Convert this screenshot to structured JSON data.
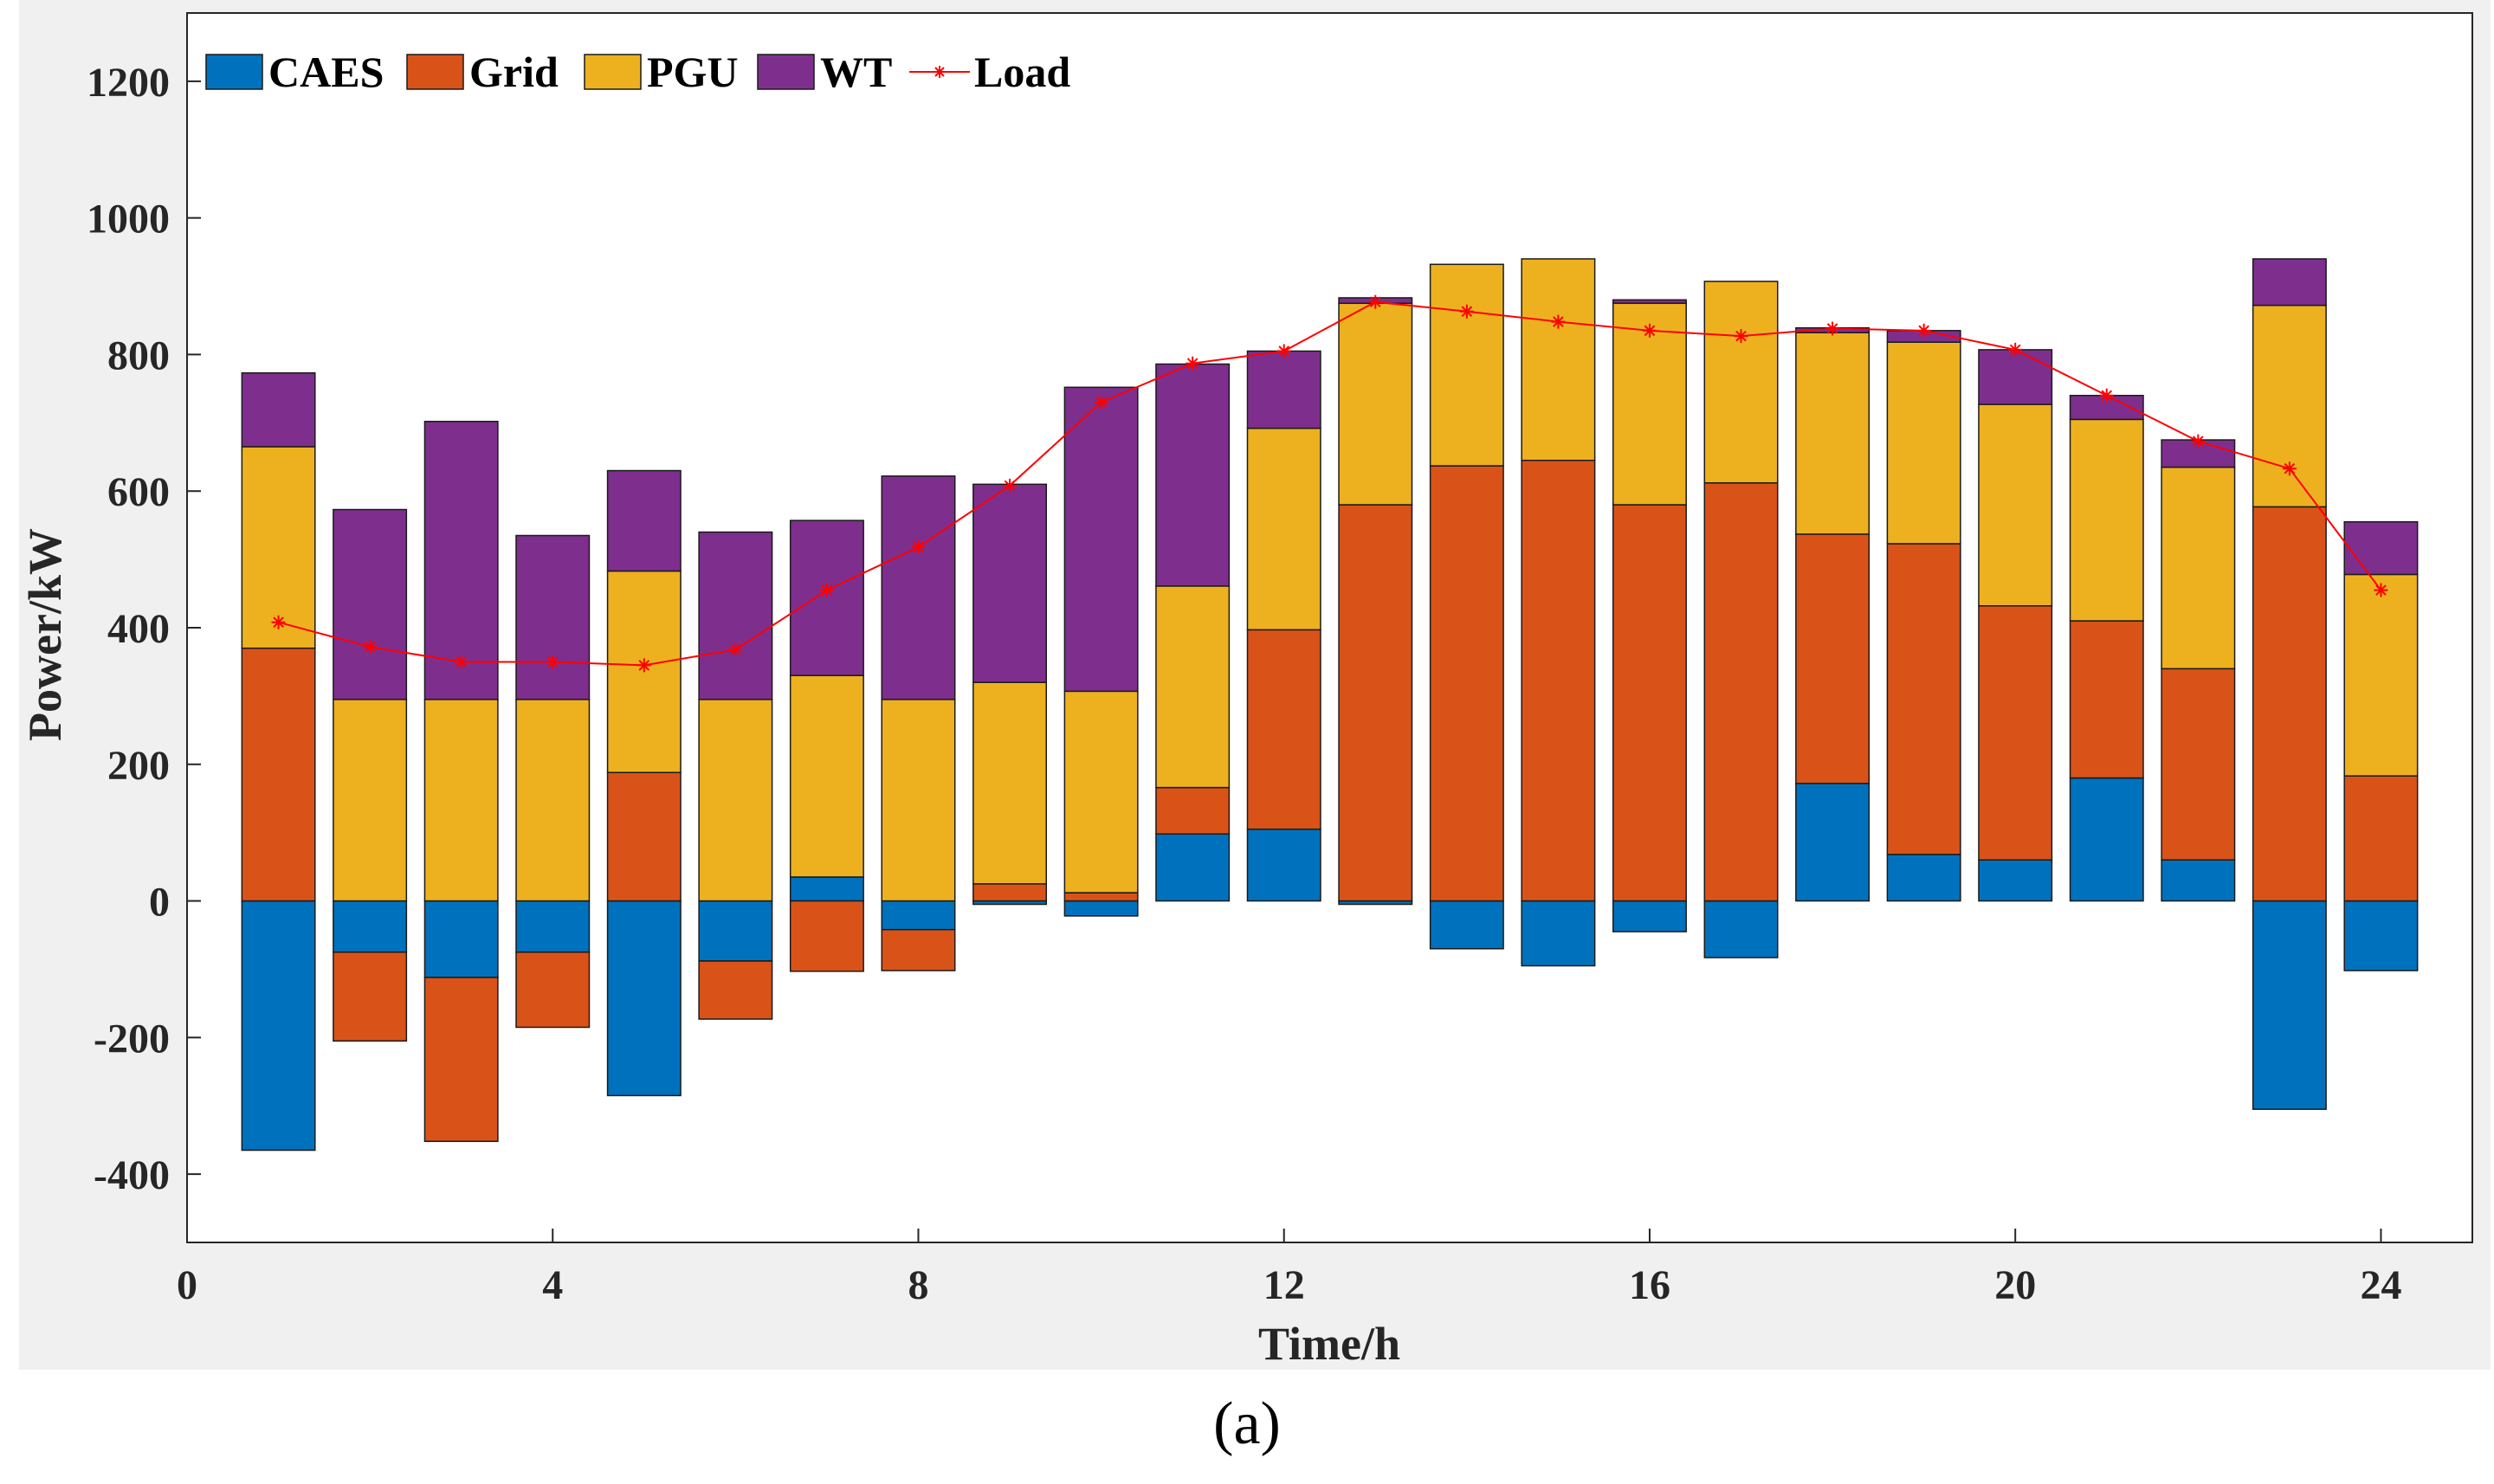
{
  "caption": "(a)",
  "chart_data": {
    "type": "bar",
    "stacked": true,
    "xlabel": "Time/h",
    "ylabel": "Power/kW",
    "xlim": [
      0,
      25
    ],
    "ylim": [
      -500,
      1300
    ],
    "xticks": [
      0,
      4,
      8,
      12,
      16,
      20,
      24
    ],
    "yticks": [
      -400,
      -200,
      0,
      200,
      400,
      600,
      800,
      1000,
      1200
    ],
    "legend_position": "top-left",
    "x": [
      1,
      2,
      3,
      4,
      5,
      6,
      7,
      8,
      9,
      10,
      11,
      12,
      13,
      14,
      15,
      16,
      17,
      18,
      19,
      20,
      21,
      22,
      23,
      24
    ],
    "series": [
      {
        "name": "CAES",
        "color": "#0072bd",
        "values": [
          -365,
          -75,
          -112,
          -75,
          -285,
          -88,
          35,
          -42,
          -5,
          -22,
          98,
          105,
          -5,
          -70,
          -95,
          -45,
          -83,
          172,
          68,
          60,
          180,
          60,
          -305,
          -102
        ]
      },
      {
        "name": "Grid",
        "color": "#d95319",
        "values": [
          370,
          -130,
          -240,
          -110,
          188,
          -85,
          -103,
          -60,
          25,
          12,
          68,
          292,
          580,
          637,
          645,
          580,
          612,
          365,
          455,
          372,
          230,
          280,
          577,
          183
        ]
      },
      {
        "name": "PGU",
        "color": "#edb120",
        "values": [
          295,
          295,
          295,
          295,
          295,
          295,
          295,
          295,
          295,
          295,
          295,
          295,
          295,
          295,
          295,
          295,
          295,
          295,
          295,
          295,
          295,
          295,
          295,
          295
        ]
      },
      {
        "name": "WT",
        "color": "#7e2f8e",
        "values": [
          108,
          278,
          407,
          240,
          147,
          245,
          227,
          327,
          290,
          445,
          325,
          113,
          8,
          0,
          0,
          5,
          0,
          7,
          17,
          80,
          35,
          40,
          68,
          77
        ]
      }
    ],
    "load": {
      "name": "Load",
      "color": "#ff0000",
      "values": [
        408,
        372,
        350,
        350,
        345,
        368,
        455,
        518,
        608,
        730,
        787,
        805,
        877,
        863,
        848,
        835,
        827,
        838,
        835,
        807,
        740,
        673,
        633,
        455
      ]
    }
  }
}
